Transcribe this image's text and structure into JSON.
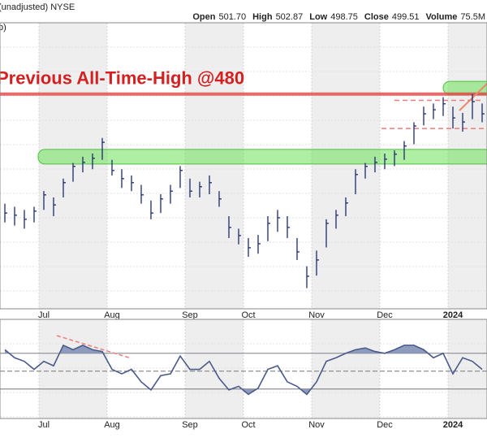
{
  "header": {
    "symbol_note": "(unadjusted) NYSE",
    "fragment": "b)",
    "quote": [
      {
        "label": "Open",
        "value": "501.70"
      },
      {
        "label": "High",
        "value": "502.87"
      },
      {
        "label": "Low",
        "value": "498.75"
      },
      {
        "label": "Close",
        "value": "499.51"
      },
      {
        "label": "Volume",
        "value": "75.5M"
      }
    ]
  },
  "chart_data": [
    {
      "type": "ohlc",
      "color": "#1c2a6e",
      "categories": [
        null,
        null,
        null,
        null,
        "Jul",
        null,
        null,
        null,
        null,
        null,
        null,
        "Aug",
        null,
        null,
        null,
        null,
        null,
        null,
        null,
        "Sep",
        null,
        null,
        null,
        null,
        null,
        "Oct",
        null,
        null,
        null,
        null,
        null,
        null,
        "Nov",
        null,
        null,
        null,
        null,
        null,
        null,
        "Dec",
        null,
        null,
        null,
        null,
        null,
        null,
        "2024",
        null,
        null,
        null
      ],
      "high": [
        445,
        444,
        443,
        444,
        449,
        447,
        453,
        458,
        460,
        461,
        466,
        459,
        456,
        454,
        451,
        446,
        448,
        451,
        457,
        453,
        452,
        454,
        449,
        441,
        437,
        434,
        435,
        441,
        443,
        441,
        434,
        425,
        430,
        440,
        443,
        447,
        456,
        458,
        460,
        461,
        462,
        465,
        471,
        476,
        477,
        479,
        476,
        474,
        480,
        477
      ],
      "low": [
        439,
        438,
        437,
        439,
        443,
        441,
        447,
        452,
        455,
        456,
        459,
        454,
        450,
        449,
        445,
        440,
        442,
        445,
        450,
        447,
        447,
        448,
        444,
        434,
        432,
        428,
        429,
        433,
        436,
        434,
        427,
        418,
        422,
        431,
        437,
        441,
        448,
        453,
        455,
        456,
        457,
        459,
        464,
        470,
        472,
        473,
        469,
        468,
        472,
        471
      ],
      "close": [
        442,
        441.3,
        440,
        442.6,
        447.8,
        444.6,
        451.7,
        456.9,
        458.2,
        459.5,
        464.6,
        455.6,
        453,
        451.7,
        447.8,
        442,
        446.5,
        449,
        455.6,
        449,
        450.4,
        451.7,
        446.5,
        437.4,
        434.8,
        430.9,
        432.2,
        438.7,
        440.5,
        437.4,
        429.6,
        421.8,
        427,
        438.7,
        441.3,
        445.2,
        454.3,
        456.9,
        458.2,
        459.2,
        460.8,
        463.4,
        469.8,
        473.7,
        475,
        476.9,
        472.4,
        471.1,
        477.6,
        473.7
      ],
      "ylim": [
        411.4,
        502.8
      ],
      "annotation": "Previous All-Time-High @480",
      "resistance": 480,
      "support_band": 460,
      "recent_band": 482,
      "dashed_levels": [
        478,
        469
      ]
    },
    {
      "type": "line",
      "color": "#4a5a8a",
      "categories": [
        null,
        null,
        null,
        null,
        "Jul",
        null,
        null,
        null,
        null,
        null,
        null,
        "Aug",
        null,
        null,
        null,
        null,
        null,
        null,
        null,
        "Sep",
        null,
        null,
        null,
        null,
        null,
        "Oct",
        null,
        null,
        null,
        null,
        null,
        null,
        "Nov",
        null,
        null,
        null,
        null,
        null,
        null,
        "Dec",
        null,
        null,
        null,
        null,
        null,
        null,
        "2024",
        null,
        null,
        null
      ],
      "values": [
        74,
        65,
        61,
        52,
        61,
        56,
        79,
        74,
        79,
        74,
        72,
        52,
        47,
        52,
        38,
        29,
        45,
        47,
        67,
        52,
        52,
        61,
        42,
        29,
        33,
        24,
        31,
        52,
        56,
        38,
        33,
        24,
        38,
        61,
        65,
        70,
        74,
        76,
        72,
        70,
        74,
        79,
        79,
        74,
        65,
        70,
        47,
        65,
        61,
        52
      ],
      "ylim": [
        -3,
        108
      ],
      "reference_lines": [
        70,
        50,
        30
      ]
    }
  ]
}
